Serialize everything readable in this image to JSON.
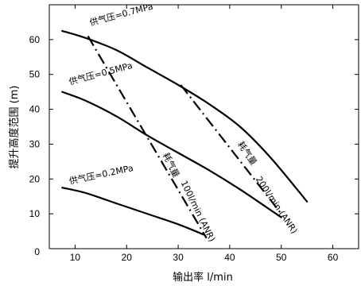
{
  "chart_data": {
    "type": "line",
    "title": "",
    "xlabel": "输出率 l/min",
    "ylabel": "提升高度范围 (m)",
    "xlim": [
      5,
      65
    ],
    "ylim": [
      0,
      70
    ],
    "x_ticks": [
      10,
      20,
      30,
      40,
      50,
      60
    ],
    "y_ticks": [
      0,
      10,
      20,
      30,
      40,
      50,
      60
    ],
    "grid": false,
    "series": [
      {
        "name": "供气压=0.7MPa",
        "style": "solid",
        "x": [
          7.5,
          12,
          18,
          24,
          30,
          36,
          42,
          48,
          55
        ],
        "y": [
          62.5,
          60.5,
          57,
          52,
          47,
          41.5,
          35,
          26,
          13.5
        ]
      },
      {
        "name": "供气压=0.5MPa",
        "style": "solid",
        "x": [
          7.5,
          12,
          18,
          24,
          30,
          36,
          42,
          48,
          50
        ],
        "y": [
          45,
          42.5,
          38,
          32.5,
          27.5,
          22.5,
          17,
          11,
          9
        ]
      },
      {
        "name": "供气压=0.2MPa",
        "style": "solid",
        "x": [
          7.5,
          12,
          18,
          24,
          30,
          35
        ],
        "y": [
          17.5,
          16,
          13,
          10,
          7,
          4
        ]
      },
      {
        "name": "耗气量 100l/min (ANR)",
        "style": "dashdot",
        "x": [
          12.5,
          35.5
        ],
        "y": [
          61,
          3
        ]
      },
      {
        "name": "耗气量 200l/min (ANR)",
        "style": "dashdot",
        "x": [
          30.5,
          50
        ],
        "y": [
          47,
          10
        ]
      }
    ],
    "annotations": [
      {
        "text": "供气压=0.7MPa",
        "anchor_x": 13,
        "anchor_y": 64
      },
      {
        "text": "供气压=0.5MPa",
        "anchor_x": 9,
        "anchor_y": 47
      },
      {
        "text": "供气压=0.2MPa",
        "anchor_x": 9,
        "anchor_y": 18.5
      },
      {
        "text": "耗气量",
        "anchor_x": 27,
        "anchor_y": 27
      },
      {
        "text": "100l/min (ANR)",
        "anchor_x": 30.5,
        "anchor_y": 19
      },
      {
        "text": "耗气量",
        "anchor_x": 41.5,
        "anchor_y": 30
      },
      {
        "text": "200l/min (ANR)",
        "anchor_x": 45,
        "anchor_y": 20
      }
    ]
  }
}
